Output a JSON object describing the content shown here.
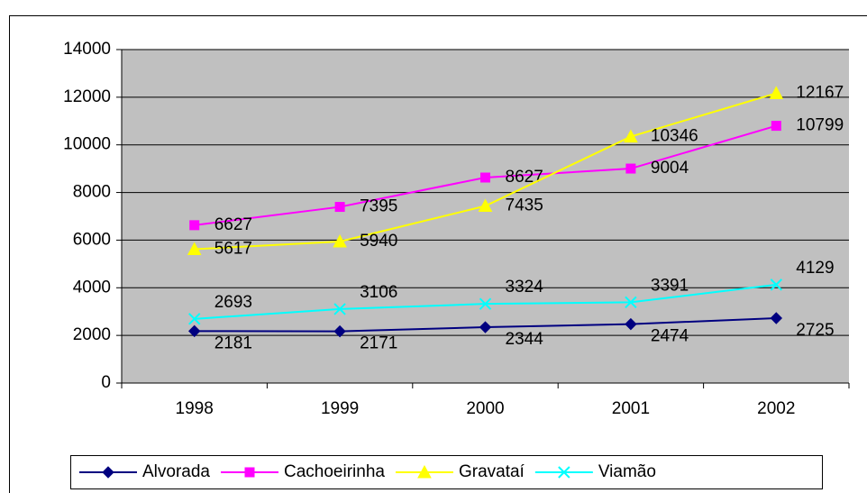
{
  "chart_data": {
    "type": "line",
    "categories": [
      "1998",
      "1999",
      "2000",
      "2001",
      "2002"
    ],
    "series": [
      {
        "name": "Alvorada",
        "color": "#000080",
        "marker": "diamond",
        "values": [
          2181,
          2171,
          2344,
          2474,
          2725
        ]
      },
      {
        "name": "Cachoeirinha",
        "color": "#ff00ff",
        "marker": "square",
        "values": [
          6627,
          7395,
          8627,
          9004,
          10799
        ]
      },
      {
        "name": "Gravataí",
        "color": "#ffff00",
        "marker": "triangle",
        "values": [
          5617,
          5940,
          7435,
          10346,
          12167
        ]
      },
      {
        "name": "Viamão",
        "color": "#00ffff",
        "marker": "x",
        "values": [
          2693,
          3106,
          3324,
          3391,
          4129
        ]
      }
    ],
    "ylim": [
      0,
      14000
    ],
    "yticks": [
      0,
      2000,
      4000,
      6000,
      8000,
      10000,
      12000,
      14000
    ],
    "grid": true,
    "legend": "bottom"
  }
}
